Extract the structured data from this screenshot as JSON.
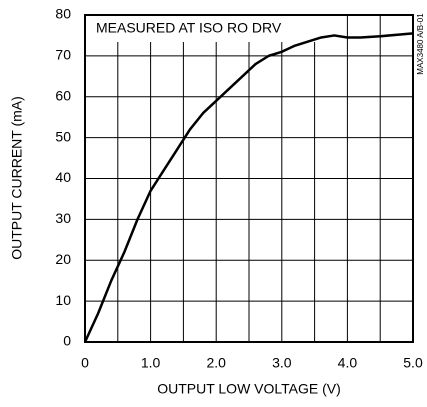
{
  "chart_data": {
    "type": "line",
    "annotation": "MEASURED AT ISO RO DRV",
    "figure_id": "MAX3480 A/B-01",
    "xlabel": "OUTPUT LOW VOLTAGE (V)",
    "ylabel": "OUTPUT CURRENT (mA)",
    "x": [
      0,
      0.2,
      0.4,
      0.6,
      0.8,
      1.0,
      1.2,
      1.4,
      1.6,
      1.8,
      2.0,
      2.2,
      2.4,
      2.6,
      2.8,
      3.0,
      3.2,
      3.4,
      3.6,
      3.8,
      4.0,
      4.2,
      4.5,
      5.0
    ],
    "series": [
      {
        "color": "#000000",
        "values": [
          0,
          7,
          15,
          22,
          30,
          37,
          42,
          47,
          52,
          56,
          59,
          62,
          65,
          68,
          70,
          71,
          72.5,
          73.5,
          74.5,
          75,
          74.5,
          74.5,
          74.8,
          75.5
        ]
      }
    ],
    "xlim": [
      0,
      5
    ],
    "xticks": [
      0,
      {
        "value": 1,
        "label": "1.0"
      },
      {
        "value": 2,
        "label": "2.0"
      },
      {
        "value": 3,
        "label": "3.0"
      },
      {
        "value": 4,
        "label": "4.0"
      },
      {
        "value": 5,
        "label": "5.0"
      }
    ],
    "xminorticks": [
      0.5,
      1.5,
      2.5,
      3.5,
      4.5
    ],
    "ylim": [
      0,
      80
    ],
    "yticks": [
      0,
      10,
      20,
      30,
      40,
      50,
      60,
      70,
      80
    ],
    "grid": true
  }
}
